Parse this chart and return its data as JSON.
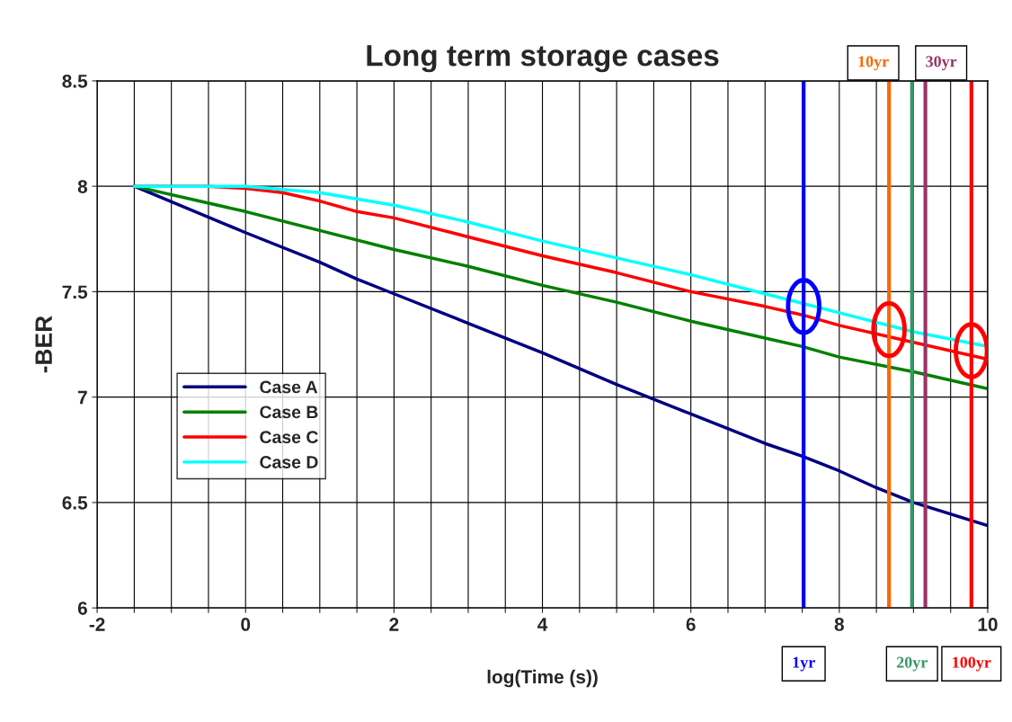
{
  "chart_data": {
    "type": "line",
    "title": "Long term storage cases",
    "xlabel": "log(Time (s))",
    "ylabel": "-BER",
    "xlim": [
      -2,
      10
    ],
    "ylim": [
      6,
      8.5
    ],
    "xticks": [
      -2,
      {
        "value": -1.5,
        "label": null
      },
      {
        "value": -1,
        "label": null
      },
      {
        "value": -0.5,
        "label": null
      },
      0,
      {
        "value": 0.5,
        "label": null
      },
      {
        "value": 1,
        "label": null
      },
      {
        "value": 1.5,
        "label": null
      },
      2,
      {
        "value": 2.5,
        "label": null
      },
      {
        "value": 3,
        "label": null
      },
      {
        "value": 3.5,
        "label": null
      },
      4,
      {
        "value": 4.5,
        "label": null
      },
      {
        "value": 5,
        "label": null
      },
      {
        "value": 5.5,
        "label": null
      },
      6,
      {
        "value": 6.5,
        "label": null
      },
      {
        "value": 7,
        "label": null
      },
      {
        "value": 7.5,
        "label": null
      },
      8,
      {
        "value": 8.5,
        "label": null
      },
      {
        "value": 9,
        "label": null
      },
      {
        "value": 9.5,
        "label": null
      },
      10
    ],
    "yticks": [
      6,
      6.5,
      7,
      7.5,
      8,
      8.5
    ],
    "grid": true,
    "legend": "left",
    "marker": "none",
    "line_style": "solid",
    "series": [
      {
        "name": "Case A",
        "color": "#000080",
        "x": [
          -1.5,
          0,
          1,
          1.5,
          2,
          3,
          4,
          5,
          6,
          7,
          7.5,
          8,
          8.5,
          9,
          10
        ],
        "values": [
          8.0,
          7.78,
          7.64,
          7.56,
          7.49,
          7.35,
          7.21,
          7.06,
          6.92,
          6.78,
          6.72,
          6.65,
          6.57,
          6.5,
          6.39
        ]
      },
      {
        "name": "Case B",
        "color": "#008000",
        "x": [
          -1.5,
          0,
          1,
          2,
          3,
          4,
          5,
          6,
          7,
          7.5,
          8,
          9,
          10
        ],
        "values": [
          8.0,
          7.88,
          7.79,
          7.7,
          7.62,
          7.53,
          7.45,
          7.36,
          7.28,
          7.24,
          7.19,
          7.12,
          7.04
        ]
      },
      {
        "name": "Case C",
        "color": "#ff0000",
        "x": [
          -1.5,
          -0.5,
          0,
          0.5,
          1,
          1.5,
          2,
          3,
          4,
          5,
          6,
          7,
          7.5,
          8,
          9,
          10
        ],
        "values": [
          8.0,
          8.0,
          7.99,
          7.97,
          7.93,
          7.88,
          7.85,
          7.76,
          7.67,
          7.59,
          7.5,
          7.43,
          7.39,
          7.34,
          7.26,
          7.18
        ]
      },
      {
        "name": "Case D",
        "color": "#00ffff",
        "x": [
          -1.5,
          0,
          1,
          2,
          3,
          4,
          5,
          6,
          7,
          8,
          9,
          10
        ],
        "values": [
          8.0,
          8.0,
          7.97,
          7.91,
          7.83,
          7.74,
          7.66,
          7.58,
          7.49,
          7.4,
          7.31,
          7.24
        ]
      }
    ],
    "ref_lines": [
      {
        "axis": "x",
        "value": 7.52,
        "label": "1yr",
        "color": "#0000ff"
      },
      {
        "axis": "x",
        "value": 8.67,
        "label": "10yr",
        "color": "#ff6600"
      },
      {
        "axis": "x",
        "value": 8.98,
        "label": "20yr",
        "color": "#339966"
      },
      {
        "axis": "x",
        "value": 9.16,
        "label": "30yr",
        "color": "#993366"
      },
      {
        "axis": "x",
        "value": 9.78,
        "label": "100yr",
        "color": "#ff0000"
      }
    ]
  }
}
